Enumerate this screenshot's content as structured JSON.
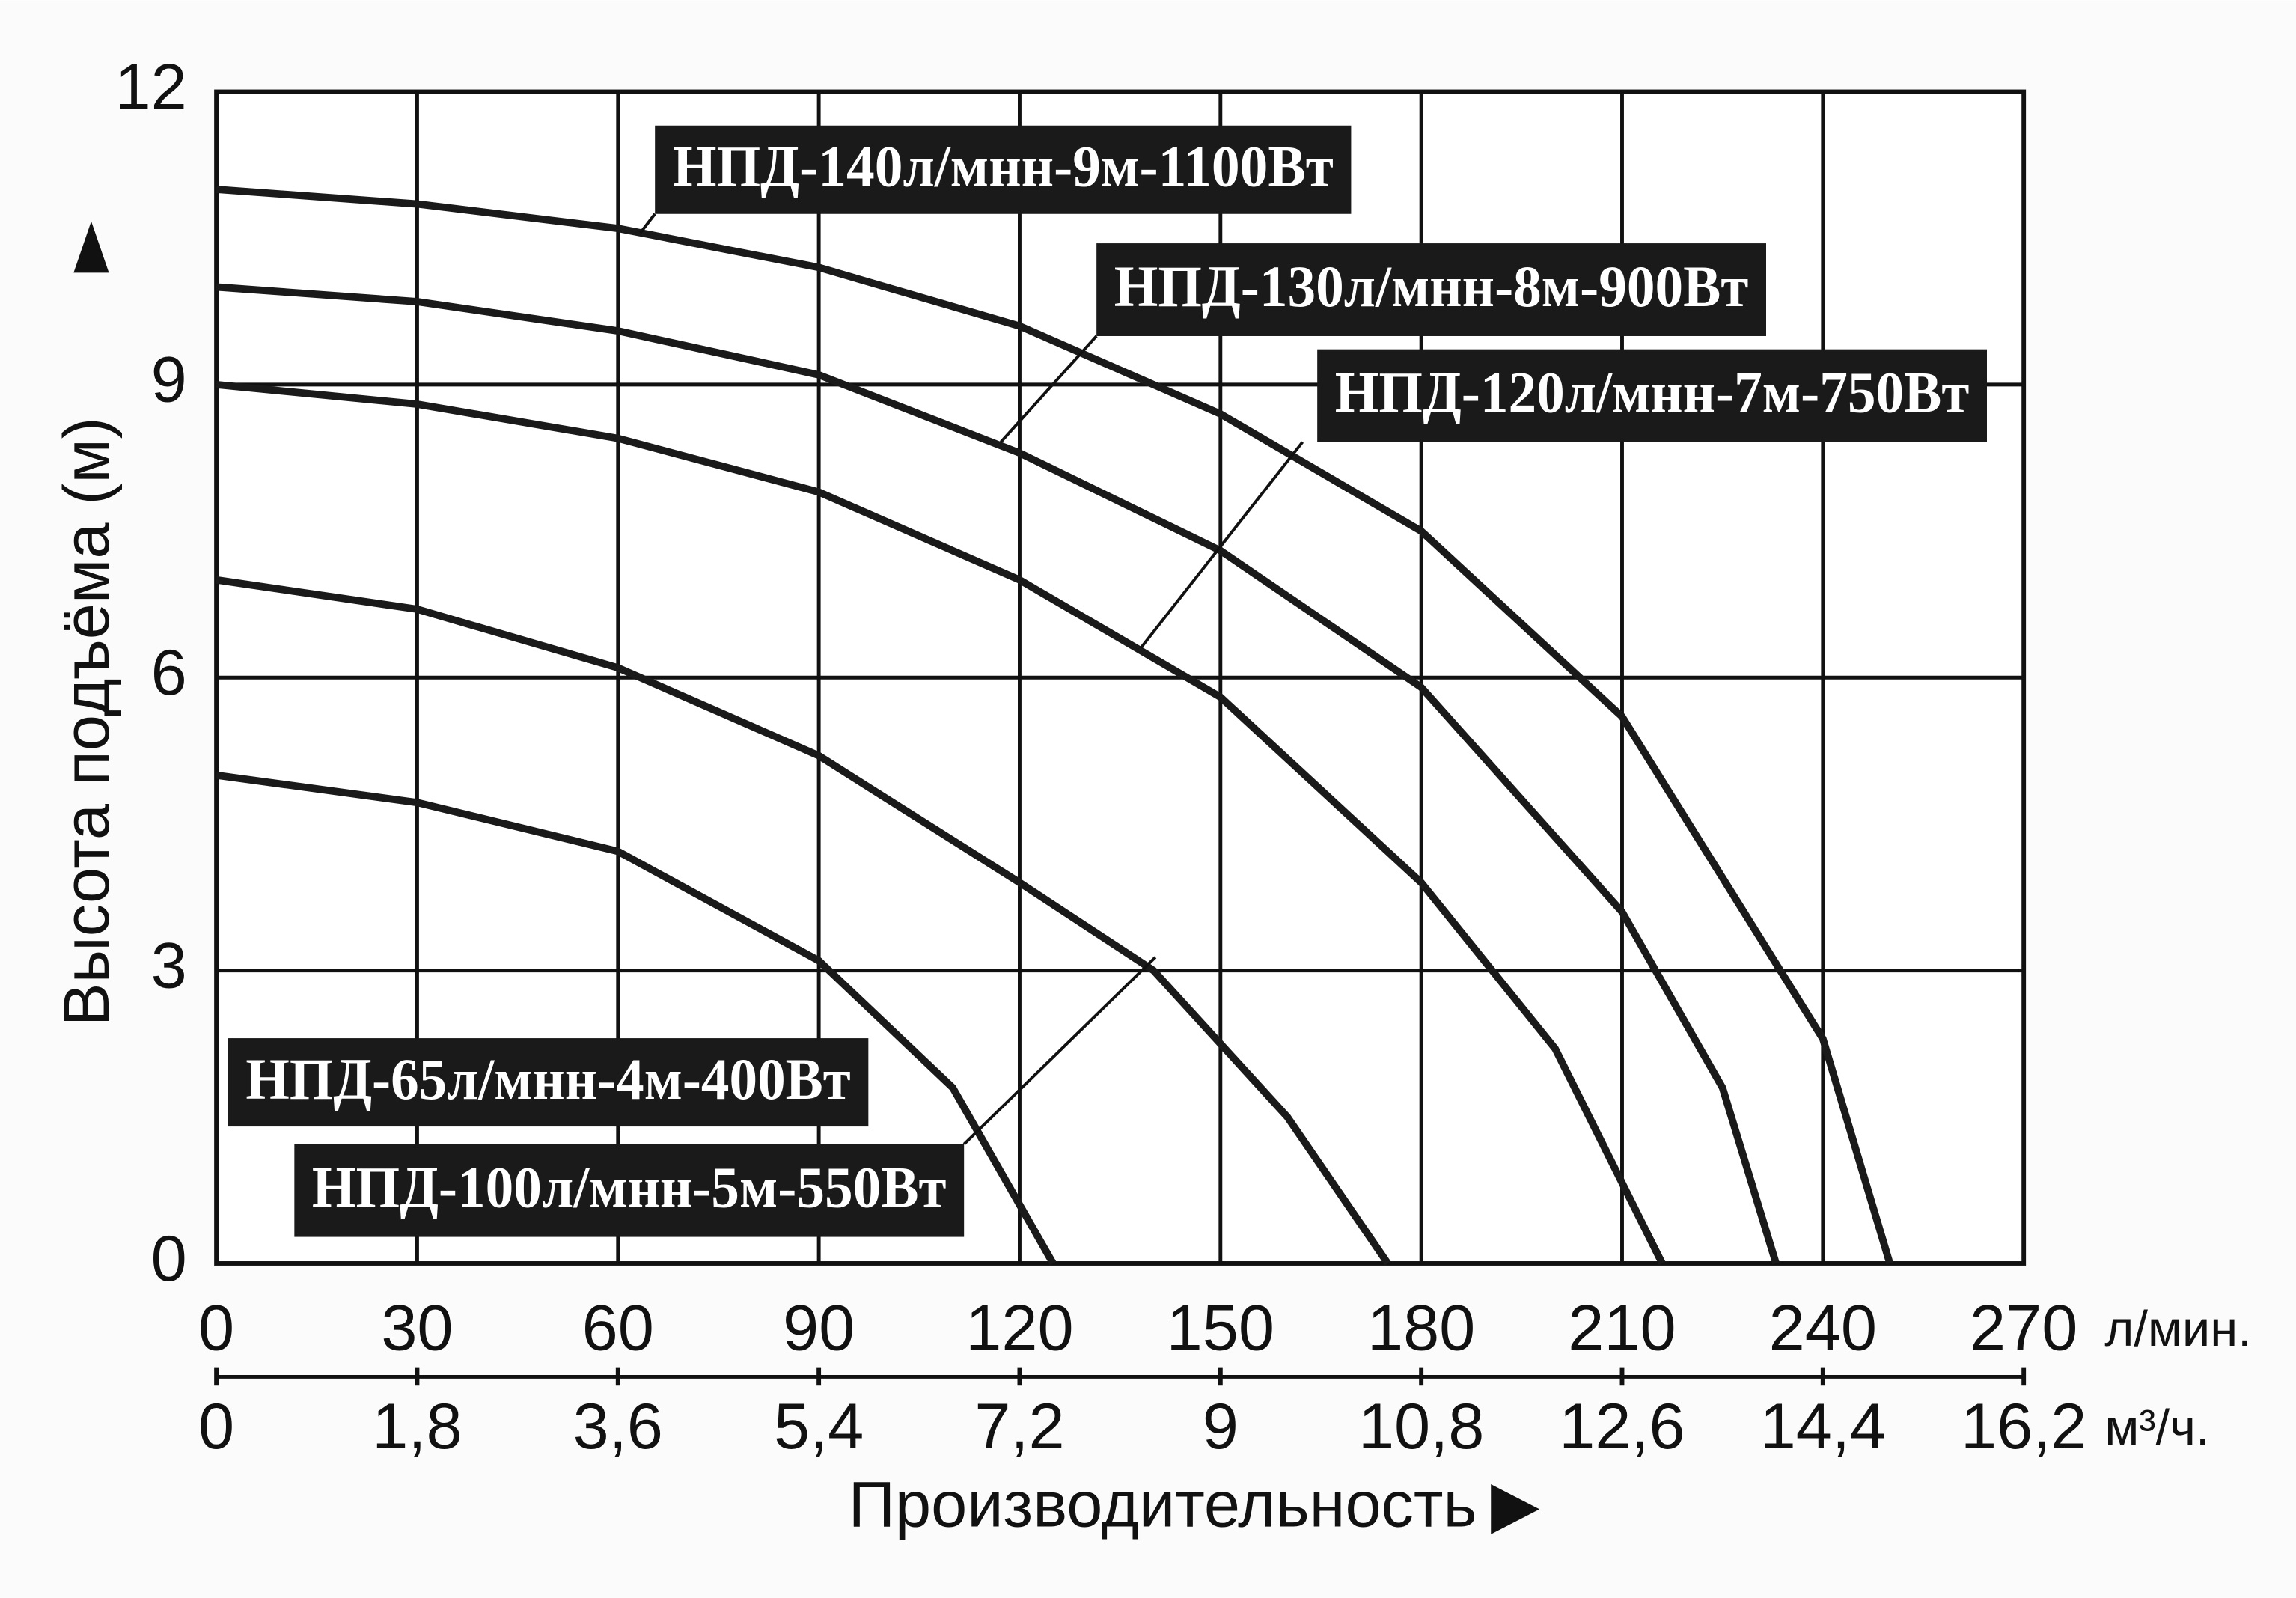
{
  "chart_data": {
    "type": "line",
    "ylabel": "Высота подъёма (м)",
    "xlabel": "Производительность",
    "xunit": "л/мин.",
    "x2unit": "м³/ч.",
    "xlim": [
      0,
      270
    ],
    "xticks": [
      0,
      30,
      60,
      90,
      120,
      150,
      180,
      210,
      240,
      270
    ],
    "x2lim": [
      0,
      16.2
    ],
    "x2ticks": [
      0,
      {
        "value": 1.8,
        "label": "1,8"
      },
      {
        "value": 3.6,
        "label": "3,6"
      },
      {
        "value": 5.4,
        "label": "5,4"
      },
      {
        "value": 7.2,
        "label": "7,2"
      },
      9,
      {
        "value": 10.8,
        "label": "10,8"
      },
      {
        "value": 12.6,
        "label": "12,6"
      },
      {
        "value": 14.4,
        "label": "14,4"
      },
      {
        "value": 16.2,
        "label": "16,2"
      }
    ],
    "ylim": [
      0,
      12
    ],
    "yticks": [
      0,
      3,
      6,
      9,
      12
    ],
    "grid": true,
    "series": [
      {
        "name": "НПД-65л/мнн-4м-400Вт",
        "color": "#1a1a1a",
        "x": [
          0,
          30,
          60,
          90,
          110,
          125
        ],
        "values": [
          5,
          4.72,
          4.22,
          3.1,
          1.8,
          0
        ]
      },
      {
        "name": "НПД-100л/мнн-5м-550Вт",
        "color": "#1a1a1a",
        "x": [
          0,
          30,
          60,
          90,
          120,
          140,
          160,
          175
        ],
        "values": [
          7,
          6.7,
          6.1,
          5.2,
          3.9,
          3,
          1.5,
          0
        ]
      },
      {
        "name": "НПД-120л/мнн-7м-750Вт",
        "color": "#1a1a1a",
        "x": [
          0,
          30,
          60,
          90,
          120,
          150,
          180,
          200,
          216
        ],
        "values": [
          9,
          8.8,
          8.45,
          7.9,
          7,
          5.8,
          3.9,
          2.2,
          0
        ]
      },
      {
        "name": "НПД-130л/мнн-8м-900Вт",
        "color": "#1a1a1a",
        "x": [
          0,
          30,
          60,
          90,
          120,
          150,
          180,
          210,
          225,
          233
        ],
        "values": [
          10,
          9.85,
          9.55,
          9.1,
          8.3,
          7.3,
          5.9,
          3.6,
          1.8,
          0
        ]
      },
      {
        "name": "НПД-140л/мнн-9м-1100Вт",
        "color": "#1a1a1a",
        "x": [
          0,
          30,
          60,
          90,
          120,
          150,
          180,
          210,
          240,
          250
        ],
        "values": [
          11,
          10.85,
          10.6,
          10.2,
          9.6,
          8.7,
          7.5,
          5.6,
          2.3,
          0
        ]
      }
    ]
  }
}
